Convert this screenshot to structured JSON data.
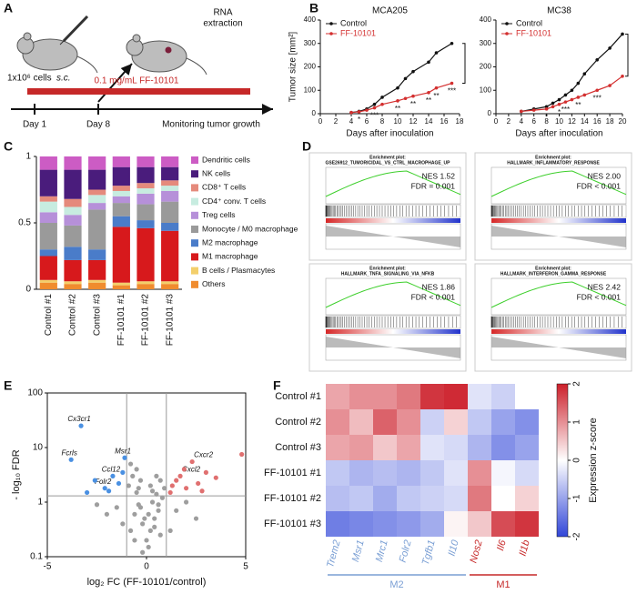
{
  "panel_labels": [
    "A",
    "B",
    "C",
    "D",
    "E",
    "F"
  ],
  "panel_a": {
    "cells": "1x10⁶ cells",
    "route": "s.c.",
    "rna_1": "RNA",
    "rna_2": "extraction",
    "treatment": "0.1 mg/mL FF-10101",
    "day_1": "Day 1",
    "day_8": "Day 8",
    "monitoring": "Monitoring tumor growth"
  },
  "panel_d": {
    "plots": [
      {
        "header": "Enrichment plot:",
        "title": "GSE26912_TUMORICIDAL_VS_CTRL_MACROPHAGE_UP",
        "nes": "NES 1.52",
        "fdr": "FDR = 0.001"
      },
      {
        "header": "Enrichment plot:",
        "title": "HALLMARK_INFLAMMATORY_RESPONSE",
        "nes": "NES 2.00",
        "fdr": "FDR < 0.001"
      },
      {
        "header": "Enrichment plot:",
        "title": "HALLMARK_TNFA_SIGNALING_VIA_NFKB",
        "nes": "NES 1.86",
        "fdr": "FDR < 0.001"
      },
      {
        "header": "Enrichment plot:",
        "title": "HALLMARK_INTERFERON_GAMMA_RESPONSE",
        "nes": "NES 2.42",
        "fdr": "FDR < 0.001"
      }
    ]
  },
  "chart_data": [
    {
      "type": "line",
      "title": "MCA205",
      "xlabel": "Days after inoculation",
      "ylabel": "Tumor size [mm²]",
      "xlim": [
        0,
        18
      ],
      "xticks": [
        0,
        2,
        4,
        6,
        8,
        10,
        12,
        14,
        16,
        18
      ],
      "ylim": [
        0,
        400
      ],
      "yticks": [
        0,
        100,
        200,
        300,
        400
      ],
      "series": [
        {
          "name": "Control",
          "color": "#111111",
          "x": [
            4,
            5,
            6,
            7,
            8,
            10,
            11,
            12,
            14,
            15,
            17
          ],
          "values": [
            5,
            10,
            20,
            40,
            70,
            110,
            150,
            180,
            220,
            260,
            300
          ]
        },
        {
          "name": "FF-10101",
          "color": "#d32f2f",
          "x": [
            4,
            5,
            6,
            7,
            8,
            10,
            11,
            12,
            14,
            15,
            17
          ],
          "values": [
            5,
            8,
            15,
            25,
            40,
            55,
            65,
            75,
            90,
            110,
            130
          ]
        }
      ],
      "annotations": [
        {
          "x": 5,
          "text": "*"
        },
        {
          "x": 7,
          "text": "***"
        },
        {
          "x": 10,
          "text": "**"
        },
        {
          "x": 12,
          "text": "**"
        },
        {
          "x": 14,
          "text": "**"
        },
        {
          "x": 15,
          "text": "**"
        },
        {
          "x": 17,
          "text": "***"
        }
      ]
    },
    {
      "type": "line",
      "title": "MC38",
      "xlabel": "Days after inoculation",
      "xlim": [
        0,
        20
      ],
      "xticks": [
        0,
        2,
        4,
        6,
        8,
        10,
        12,
        14,
        16,
        18,
        20
      ],
      "ylim": [
        0,
        400
      ],
      "yticks": [
        0,
        100,
        200,
        300,
        400
      ],
      "series": [
        {
          "name": "Control",
          "color": "#111111",
          "x": [
            4,
            6,
            8,
            9,
            10,
            11,
            12,
            13,
            14,
            16,
            18,
            20
          ],
          "values": [
            10,
            20,
            30,
            45,
            60,
            80,
            100,
            130,
            170,
            230,
            280,
            340
          ]
        },
        {
          "name": "FF-10101",
          "color": "#d32f2f",
          "x": [
            4,
            6,
            8,
            9,
            10,
            11,
            12,
            13,
            14,
            16,
            18,
            20
          ],
          "values": [
            10,
            15,
            20,
            30,
            40,
            50,
            60,
            70,
            80,
            100,
            120,
            160
          ]
        }
      ],
      "annotations": [
        {
          "x": 8,
          "text": "*"
        },
        {
          "x": 10,
          "text": "*"
        },
        {
          "x": 11,
          "text": "***"
        },
        {
          "x": 13,
          "text": "**"
        },
        {
          "x": 16,
          "text": "***"
        }
      ]
    },
    {
      "type": "stacked_bar",
      "categories": [
        "Control #1",
        "Control #2",
        "Control #3",
        "FF-10101 #1",
        "FF-10101 #2",
        "FF-10101 #3"
      ],
      "ylim": [
        0,
        1
      ],
      "yticks": [
        0,
        0.5,
        1
      ],
      "series": [
        {
          "name": "Others",
          "color": "#f08c2e",
          "values": [
            0.05,
            0.04,
            0.05,
            0.03,
            0.04,
            0.04
          ]
        },
        {
          "name": "B cells / Plasmacytes",
          "color": "#f3cf6b",
          "values": [
            0.02,
            0.02,
            0.02,
            0.02,
            0.02,
            0.02
          ]
        },
        {
          "name": "M1 macrophage",
          "color": "#d7191c",
          "values": [
            0.18,
            0.16,
            0.15,
            0.42,
            0.4,
            0.38
          ]
        },
        {
          "name": "M2 macrophage",
          "color": "#4a7cc9",
          "values": [
            0.05,
            0.1,
            0.08,
            0.08,
            0.06,
            0.06
          ]
        },
        {
          "name": "Monocyte / M0 macrophage",
          "color": "#9a9a9a",
          "values": [
            0.2,
            0.16,
            0.3,
            0.1,
            0.12,
            0.16
          ]
        },
        {
          "name": "Treg cells",
          "color": "#b690d9",
          "values": [
            0.08,
            0.08,
            0.05,
            0.05,
            0.08,
            0.08
          ]
        },
        {
          "name": "CD4⁺ conv. T cells",
          "color": "#c7ece0",
          "values": [
            0.08,
            0.06,
            0.06,
            0.04,
            0.04,
            0.04
          ]
        },
        {
          "name": "CD8⁺ T cells",
          "color": "#e58a7c",
          "values": [
            0.04,
            0.06,
            0.04,
            0.04,
            0.04,
            0.04
          ]
        },
        {
          "name": "NK cells",
          "color": "#4a1c7c",
          "values": [
            0.2,
            0.22,
            0.15,
            0.14,
            0.12,
            0.1
          ]
        },
        {
          "name": "Dendritic cells",
          "color": "#cc5cc4",
          "values": [
            0.1,
            0.1,
            0.1,
            0.08,
            0.08,
            0.08
          ]
        }
      ]
    },
    {
      "type": "scatter",
      "xlabel": "log₂ FC (FF-10101/control)",
      "ylabel": "- log₁₀ FDR",
      "xlim": [
        -5,
        5
      ],
      "xticks": [
        -5,
        0,
        5
      ],
      "ylim": [
        0.1,
        100
      ],
      "yticks": [
        0.1,
        1,
        10,
        100
      ],
      "ylog": true,
      "vlines": [
        -1,
        1
      ],
      "hlines": [
        1.3
      ],
      "series": [
        {
          "color": "#9e9e9e",
          "x": [
            -0.9,
            -0.7,
            -0.5,
            -0.3,
            -0.1,
            0.1,
            0.3,
            0.5,
            0.7,
            0.9,
            -0.8,
            -0.6,
            -0.4,
            -0.2,
            0,
            0.2,
            0.4,
            0.6,
            0.8,
            -0.5,
            -0.3,
            0.2,
            0.5,
            -1.5,
            -2,
            -2.5,
            1.5,
            2,
            2.5,
            -0.8,
            -0.4,
            0.3,
            0.6,
            -1.2,
            1.2,
            -0.6,
            0.1,
            0.7,
            -0.2,
            0.4
          ],
          "values": [
            2,
            3,
            1.5,
            0.8,
            0.5,
            0.6,
            1,
            1.4,
            2.5,
            1.8,
            0.3,
            0.6,
            0.9,
            0.4,
            0.2,
            0.3,
            0.5,
            0.7,
            1.2,
            4,
            2.5,
            2,
            3,
            0.8,
            0.6,
            0.9,
            0.7,
            1,
            0.5,
            5,
            1.8,
            1.6,
            0.9,
            0.4,
            0.3,
            0.2,
            0.15,
            0.25,
            0.12,
            0.35
          ]
        },
        {
          "color": "#4a90e2",
          "x": [
            -3.3,
            -3.8,
            -1.1,
            -1.7,
            -2.1,
            -1.4,
            -2.6,
            -1.9,
            -1.2,
            -3.0
          ],
          "values": [
            25,
            6,
            6.5,
            3,
            1.8,
            2.2,
            2.5,
            1.6,
            3.5,
            1.5
          ],
          "labels": [
            "Cx3cr1",
            "Fcrls",
            "Msr1",
            "Ccl12",
            "Folr2",
            null,
            null,
            null,
            null,
            null
          ]
        },
        {
          "color": "#e07070",
          "x": [
            2.3,
            1.7,
            1.3,
            1.5,
            2.0,
            2.6,
            3.0,
            4.8,
            1.2,
            1.9,
            2.8,
            3.5
          ],
          "values": [
            5.5,
            3,
            2,
            2.5,
            1.8,
            2.2,
            3.5,
            7.5,
            1.5,
            4,
            1.6,
            2.8
          ],
          "labels": [
            "Cxcr2",
            "Cxcl2",
            null,
            null,
            null,
            null,
            null,
            null,
            null,
            null,
            null,
            null
          ]
        }
      ]
    },
    {
      "type": "heatmap",
      "rows": [
        "Control #1",
        "Control #2",
        "Control #3",
        "FF-10101 #1",
        "FF-10101 #2",
        "FF-10101 #3"
      ],
      "columns": [
        "Trem2",
        "Msr1",
        "Mrc1",
        "Folr2",
        "Tgfb1",
        "Il10",
        "Nos2",
        "Il6",
        "Il1b"
      ],
      "column_groups": [
        "M2",
        "M2",
        "M2",
        "M2",
        "M2",
        "M2",
        "M1",
        "M1",
        "M1"
      ],
      "group_colors": {
        "M2": "#7a9fd4",
        "M1": "#c62828"
      },
      "values": [
        [
          0.8,
          1.0,
          1.0,
          1.2,
          1.8,
          1.9,
          -0.3,
          -0.5,
          0.0
        ],
        [
          1.0,
          0.6,
          1.4,
          1.0,
          -0.5,
          0.4,
          -0.6,
          -1.0,
          -1.2
        ],
        [
          0.8,
          0.9,
          0.5,
          0.8,
          -0.3,
          -0.4,
          -0.8,
          -1.2,
          -1.0
        ],
        [
          -0.6,
          -0.8,
          -0.7,
          -0.8,
          -0.6,
          -0.3,
          1.0,
          -0.1,
          -0.4
        ],
        [
          -0.7,
          -0.6,
          -0.9,
          -0.6,
          -0.5,
          -0.4,
          1.2,
          0.0,
          0.4
        ],
        [
          -1.4,
          -1.3,
          -1.2,
          -1.1,
          -0.9,
          0.1,
          0.5,
          1.6,
          1.8
        ]
      ],
      "zlim": [
        -2,
        2
      ],
      "zticks": [
        -2,
        -1,
        0,
        1,
        2
      ],
      "colors": [
        "#3146d8",
        "#ffffff",
        "#cc1f2a"
      ],
      "colorbar_label": "Expression z-score"
    }
  ]
}
